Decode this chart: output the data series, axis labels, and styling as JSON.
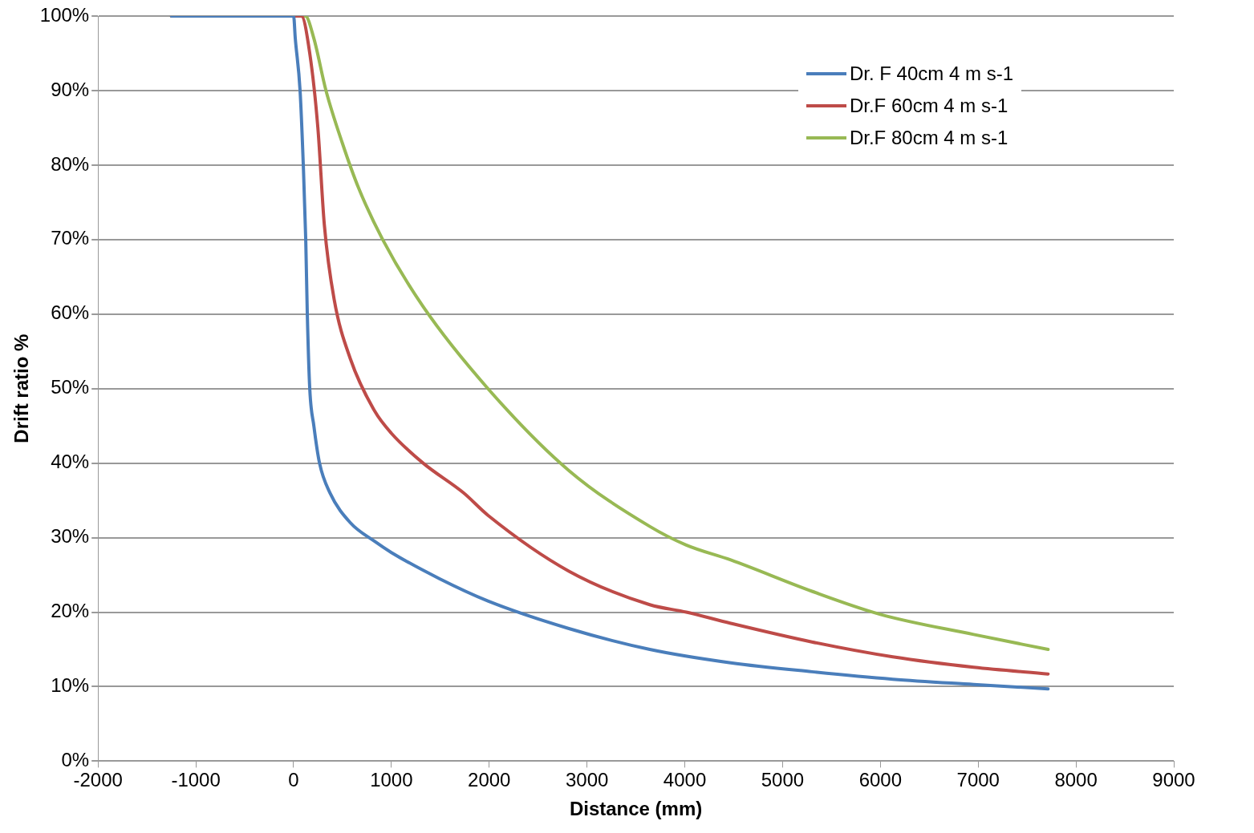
{
  "chart_data": {
    "type": "line",
    "xlabel": "Distance (mm)",
    "ylabel": "Drift ratio %",
    "xlim": [
      -2000,
      9000
    ],
    "xticks": [
      -2000,
      -1000,
      0,
      1000,
      2000,
      3000,
      4000,
      5000,
      6000,
      7000,
      8000,
      9000
    ],
    "ylim": [
      0,
      100
    ],
    "yticks": [
      {
        "value": 0,
        "label": "0%"
      },
      {
        "value": 10,
        "label": "10%"
      },
      {
        "value": 20,
        "label": "20%"
      },
      {
        "value": 30,
        "label": "30%"
      },
      {
        "value": 40,
        "label": "40%"
      },
      {
        "value": 50,
        "label": "50%"
      },
      {
        "value": 60,
        "label": "60%"
      },
      {
        "value": 70,
        "label": "70%"
      },
      {
        "value": 80,
        "label": "80%"
      },
      {
        "value": 90,
        "label": "90%"
      },
      {
        "value": 100,
        "label": "100%"
      }
    ],
    "grid": "y",
    "legend": "top right",
    "marker": "none",
    "line_style": "solid",
    "series": [
      {
        "name": "Dr. F 40cm 4 m s-1",
        "color": "#4a7ebb",
        "x": [
          -1250,
          0,
          17,
          66,
          99,
          124,
          140,
          165,
          207,
          265,
          372,
          580,
          828,
          1000,
          1490,
          1987,
          2815,
          3642,
          4470,
          5300,
          6126,
          6954,
          7715
        ],
        "values": [
          100,
          100,
          97,
          90,
          80,
          70,
          60,
          50,
          45,
          40,
          36,
          32,
          29.5,
          28,
          24.5,
          21.5,
          17.8,
          15,
          13.2,
          12,
          11,
          10.3,
          9.7
        ]
      },
      {
        "name": "Dr.F 60cm 4 m s-1",
        "color": "#be4b48",
        "x": [
          -1250,
          80,
          165,
          248,
          314,
          414,
          580,
          828,
          1000,
          1324,
          1738,
          1987,
          2815,
          3642,
          4015,
          4470,
          5300,
          6126,
          6954,
          7715
        ],
        "values": [
          100,
          100,
          95,
          85,
          72,
          62,
          54,
          47,
          44,
          40,
          36,
          33,
          25.5,
          21,
          20,
          18.5,
          16,
          14,
          12.6,
          11.7
        ]
      },
      {
        "name": "Dr.F 80cm 4 m s-1",
        "color": "#98b954",
        "x": [
          -1250,
          120,
          207,
          331,
          497,
          662,
          911,
          1324,
          1987,
          2815,
          3642,
          4015,
          4470,
          5300,
          6000,
          6954,
          7715
        ],
        "values": [
          100,
          100,
          97,
          90,
          83,
          77,
          70,
          61,
          50,
          39,
          31.5,
          29,
          27,
          22.8,
          19.7,
          17,
          15
        ]
      }
    ]
  }
}
